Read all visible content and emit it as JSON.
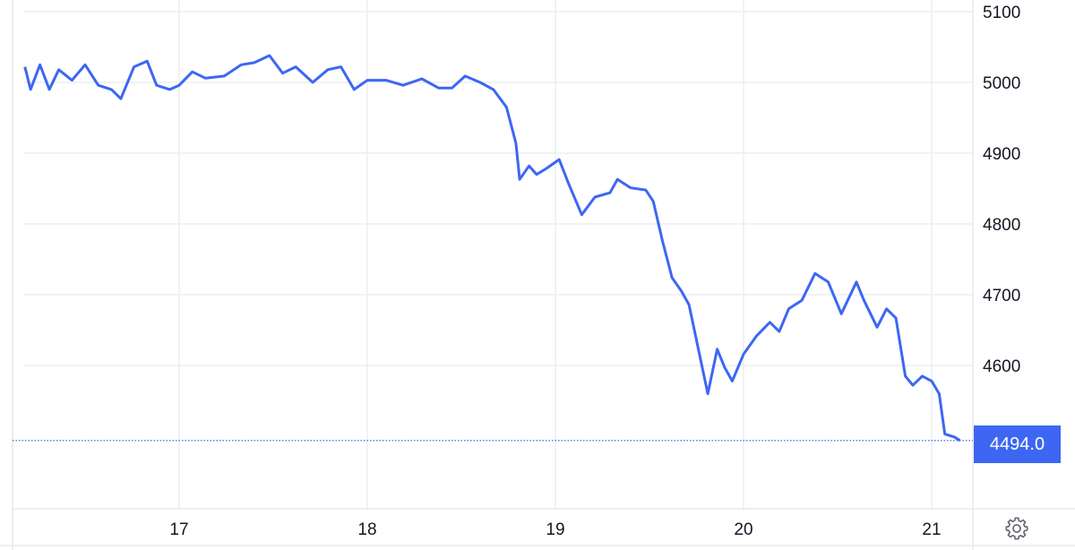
{
  "chart_data": {
    "type": "line",
    "title": "",
    "xlabel": "",
    "ylabel": "",
    "x_ticks": [
      "17",
      "18",
      "19",
      "20",
      "21"
    ],
    "y_ticks": [
      "4600",
      "4700",
      "4800",
      "4900",
      "5000",
      "5100"
    ],
    "ylim": [
      4400,
      5100
    ],
    "grid": true,
    "last_price_label": "4494.0",
    "colors": {
      "line": "#3d67f2",
      "grid": "#eceef2",
      "price_box": "#3d67f2"
    },
    "series": [
      {
        "x": [
          16.18,
          16.21,
          16.26,
          16.31,
          16.36,
          16.43,
          16.5,
          16.57,
          16.64,
          16.69,
          16.76,
          16.83,
          16.88,
          16.95,
          17.0,
          17.07,
          17.14,
          17.24,
          17.33,
          17.4,
          17.48,
          17.55,
          17.62,
          17.71,
          17.79,
          17.86,
          17.93,
          18.0,
          18.1,
          18.19,
          18.29,
          18.38,
          18.45,
          18.52,
          18.6,
          18.67,
          18.74,
          18.79,
          18.81,
          18.86,
          18.9,
          18.95,
          19.02,
          19.07,
          19.14,
          19.21,
          19.29,
          19.33,
          19.4,
          19.48,
          19.52,
          19.57,
          19.62,
          19.67,
          19.71,
          19.76,
          19.81,
          19.86,
          19.9,
          19.94,
          20.0,
          20.07,
          20.14,
          20.19,
          20.24,
          20.31,
          20.38,
          20.45,
          20.52,
          20.6,
          20.64,
          20.71,
          20.76,
          20.81,
          20.86,
          20.9,
          20.95,
          21.0,
          21.04,
          21.07,
          21.12,
          21.15
        ],
        "y": [
          5022,
          4990,
          5025,
          4990,
          5018,
          5003,
          5025,
          4996,
          4990,
          4977,
          5022,
          5030,
          4996,
          4990,
          4996,
          5015,
          5006,
          5009,
          5025,
          5028,
          5038,
          5013,
          5022,
          5000,
          5018,
          5022,
          4990,
          5003,
          5003,
          4996,
          5005,
          4992,
          4992,
          5009,
          5000,
          4990,
          4965,
          4914,
          4863,
          4882,
          4870,
          4878,
          4891,
          4857,
          4813,
          4838,
          4844,
          4863,
          4851,
          4848,
          4832,
          4775,
          4724,
          4705,
          4686,
          4623,
          4560,
          4623,
          4597,
          4578,
          4616,
          4642,
          4661,
          4648,
          4680,
          4692,
          4730,
          4718,
          4673,
          4718,
          4692,
          4654,
          4680,
          4667,
          4585,
          4572,
          4585,
          4578,
          4560,
          4503,
          4499,
          4494
        ]
      }
    ]
  },
  "toolbar": {
    "settings_icon": "gear-icon"
  }
}
